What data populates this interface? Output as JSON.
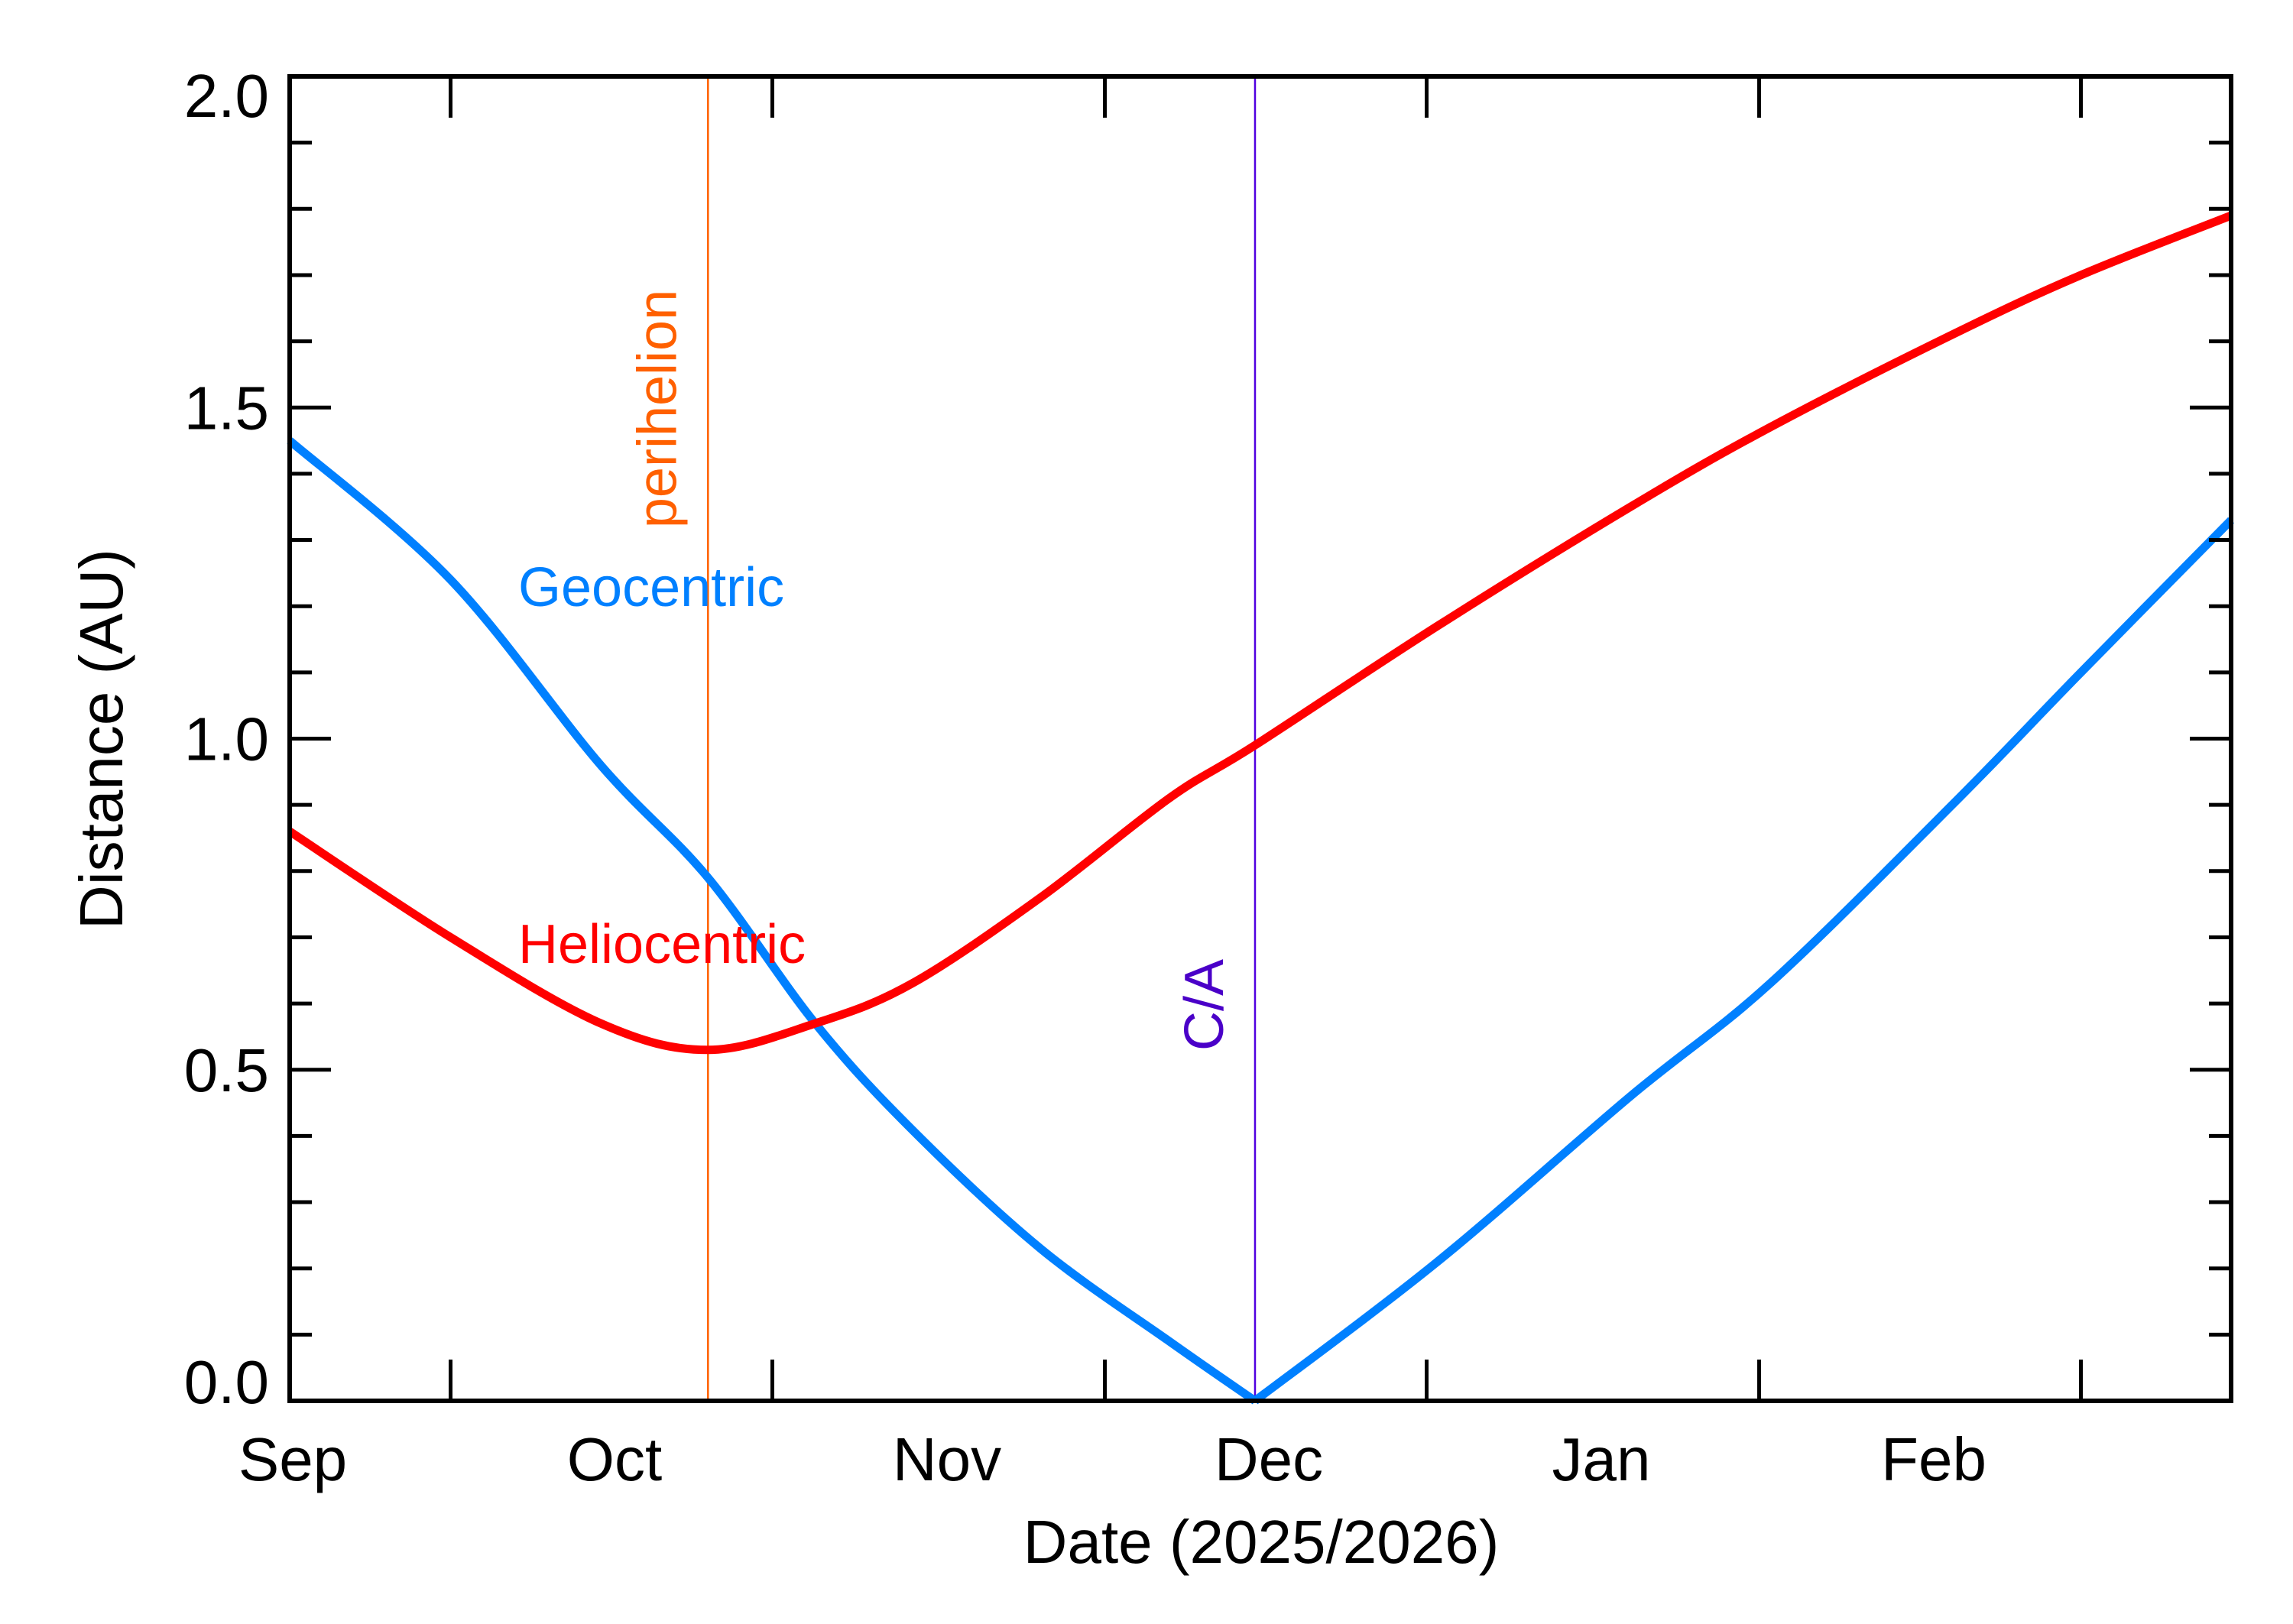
{
  "chart_data": {
    "type": "line",
    "title": "",
    "xlabel": "Date (2025/2026)",
    "ylabel": "Distance (AU)",
    "xlim": [
      "2025-09-01",
      "2026-03-01"
    ],
    "ylim": [
      0.0,
      2.0
    ],
    "y_major_ticks": [
      0.0,
      0.5,
      1.0,
      1.5,
      2.0
    ],
    "y_tick_labels": [
      "0.0",
      "0.5",
      "1.0",
      "1.5",
      "2.0"
    ],
    "y_minor_step": 0.1,
    "x_tick_labels": [
      {
        "label": "Sep",
        "date": "2025-09-01"
      },
      {
        "label": "Oct",
        "date": "2025-10-01"
      },
      {
        "label": "Nov",
        "date": "2025-11-01"
      },
      {
        "label": "Dec",
        "date": "2025-12-01"
      },
      {
        "label": "Jan",
        "date": "2026-01-01"
      },
      {
        "label": "Feb",
        "date": "2026-02-01"
      }
    ],
    "x_major_tick_dates": [
      "2025-09-16",
      "2025-10-16",
      "2025-11-16",
      "2025-12-16",
      "2026-01-16",
      "2026-02-15"
    ],
    "grid": false,
    "x": [
      "2025-09-01",
      "2025-09-16",
      "2025-09-30",
      "2025-10-10",
      "2025-10-20",
      "2025-10-29",
      "2025-11-10",
      "2025-11-22",
      "2025-11-30",
      "2025-12-17",
      "2026-01-04",
      "2026-01-17",
      "2026-02-03",
      "2026-02-15",
      "2026-03-01"
    ],
    "series": [
      {
        "name": "Geocentric",
        "color": "#0080ff",
        "values": [
          1.45,
          1.24,
          0.96,
          0.79,
          0.57,
          0.41,
          0.23,
          0.09,
          0.0,
          0.21,
          0.46,
          0.63,
          0.9,
          1.1,
          1.33
        ]
      },
      {
        "name": "Heliocentric",
        "color": "#ff0000",
        "values": [
          0.86,
          0.7,
          0.57,
          0.53,
          0.57,
          0.63,
          0.76,
          0.91,
          0.99,
          1.17,
          1.35,
          1.47,
          1.61,
          1.7,
          1.79
        ]
      }
    ],
    "annotations": [
      {
        "label": "perihelion",
        "date": "2025-10-10",
        "color": "#ff6000",
        "text_color": "#ff6000"
      },
      {
        "label": "C/A",
        "date": "2025-11-30",
        "color": "#5000e0",
        "text_color": "#4a00c8"
      }
    ]
  }
}
